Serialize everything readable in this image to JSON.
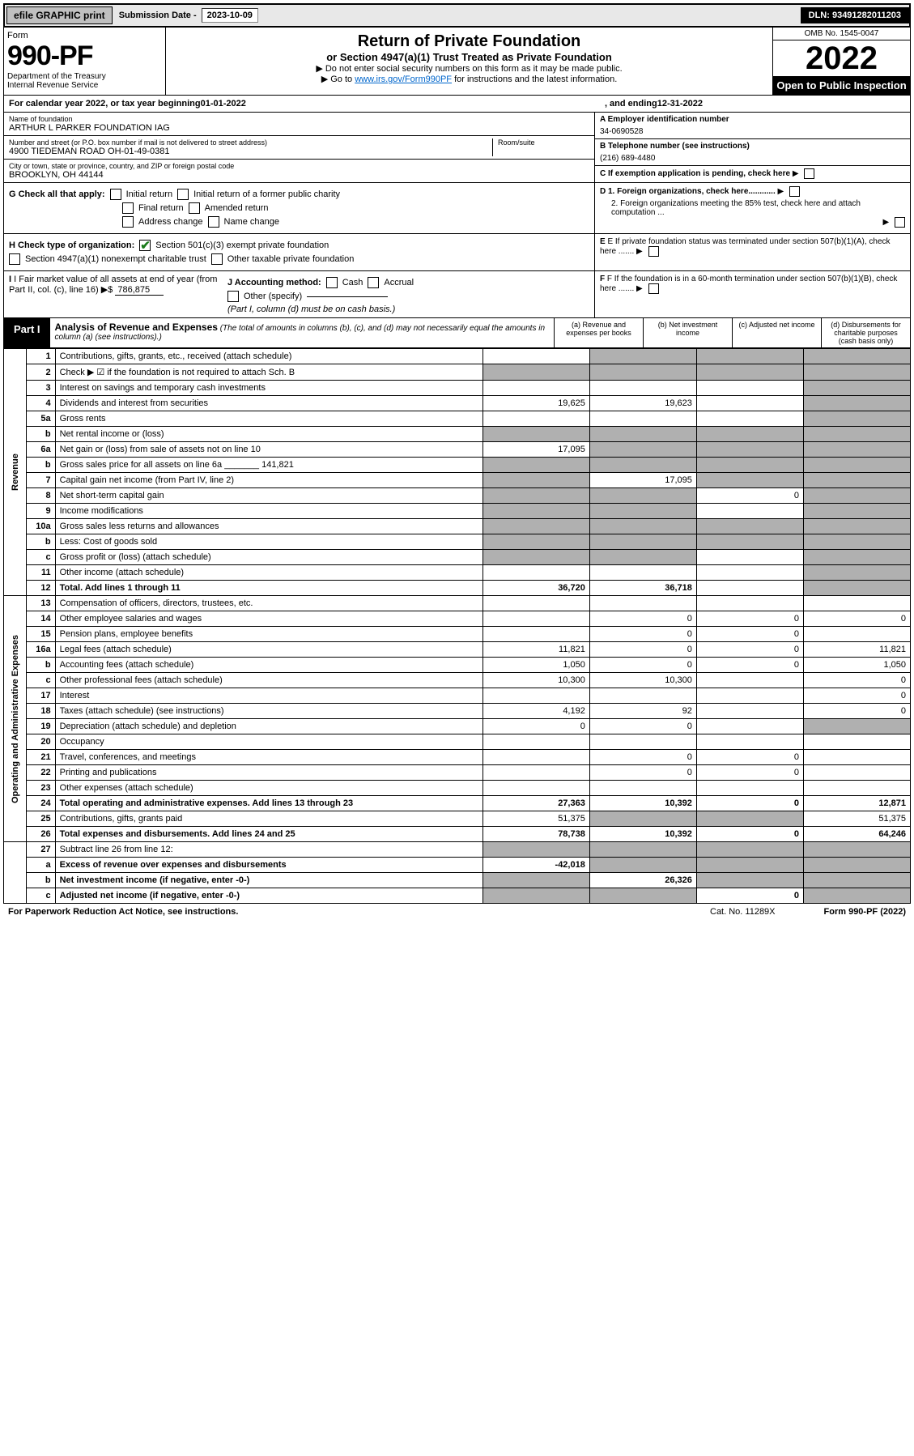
{
  "topbar": {
    "efile": "efile GRAPHIC print",
    "sub_label": "Submission Date - ",
    "sub_date": "2023-10-09",
    "dln_label": "DLN: ",
    "dln": "93491282011203"
  },
  "header": {
    "form_word": "Form",
    "form_no": "990-PF",
    "dept": "Department of the Treasury",
    "irs": "Internal Revenue Service",
    "title": "Return of Private Foundation",
    "subtitle": "or Section 4947(a)(1) Trust Treated as Private Foundation",
    "note1": "▶ Do not enter social security numbers on this form as it may be made public.",
    "note2_pre": "▶ Go to ",
    "note2_link": "www.irs.gov/Form990PF",
    "note2_post": " for instructions and the latest information.",
    "omb": "OMB No. 1545-0047",
    "year": "2022",
    "open": "Open to Public Inspection"
  },
  "cal": {
    "text_a": "For calendar year 2022, or tax year beginning ",
    "begin": "01-01-2022",
    "text_b": " , and ending ",
    "end": "12-31-2022"
  },
  "entity": {
    "name_lbl": "Name of foundation",
    "name": "ARTHUR L PARKER FOUNDATION IAG",
    "addr_lbl": "Number and street (or P.O. box number if mail is not delivered to street address)",
    "addr": "4900 TIEDEMAN ROAD OH-01-49-0381",
    "room_lbl": "Room/suite",
    "city_lbl": "City or town, state or province, country, and ZIP or foreign postal code",
    "city": "BROOKLYN, OH  44144",
    "A_lbl": "A Employer identification number",
    "A_val": "34-0690528",
    "B_lbl": "B Telephone number (see instructions)",
    "B_val": "(216) 689-4480",
    "C_lbl": "C If exemption application is pending, check here",
    "D1": "D 1. Foreign organizations, check here............",
    "D2": "2. Foreign organizations meeting the 85% test, check here and attach computation ...",
    "E": "E  If private foundation status was terminated under section 507(b)(1)(A), check here .......",
    "F": "F  If the foundation is in a 60-month termination under section 507(b)(1)(B), check here .......",
    "G": "G Check all that apply:",
    "G_opts": [
      "Initial return",
      "Initial return of a former public charity",
      "Final return",
      "Amended return",
      "Address change",
      "Name change"
    ],
    "H": "H Check type of organization:",
    "H1": "Section 501(c)(3) exempt private foundation",
    "H2": "Section 4947(a)(1) nonexempt charitable trust",
    "H3": "Other taxable private foundation",
    "I": "I Fair market value of all assets at end of year (from Part II, col. (c), line 16) ▶$",
    "I_val": "786,875",
    "J": "J Accounting method:",
    "J_cash": "Cash",
    "J_accr": "Accrual",
    "J_other": "Other (specify)",
    "J_note": "(Part I, column (d) must be on cash basis.)"
  },
  "part1": {
    "tab": "Part I",
    "title": "Analysis of Revenue and Expenses",
    "note": " (The total of amounts in columns (b), (c), and (d) may not necessarily equal the amounts in column (a) (see instructions).)",
    "col_a": "(a) Revenue and expenses per books",
    "col_b": "(b) Net investment income",
    "col_c": "(c) Adjusted net income",
    "col_d": "(d) Disbursements for charitable purposes (cash basis only)"
  },
  "sides": {
    "rev": "Revenue",
    "exp": "Operating and Administrative Expenses"
  },
  "rows": [
    {
      "n": "1",
      "d": "Contributions, gifts, grants, etc., received (attach schedule)",
      "a": "",
      "b": "shade",
      "c": "shade",
      "dd": "shade"
    },
    {
      "n": "2",
      "d": "Check ▶ ☑ if the foundation is not required to attach Sch. B",
      "a": "shade",
      "b": "shade",
      "c": "shade",
      "dd": "shade"
    },
    {
      "n": "3",
      "d": "Interest on savings and temporary cash investments",
      "a": "",
      "b": "",
      "c": "",
      "dd": "shade"
    },
    {
      "n": "4",
      "d": "Dividends and interest from securities",
      "a": "19,625",
      "b": "19,623",
      "c": "",
      "dd": "shade"
    },
    {
      "n": "5a",
      "d": "Gross rents",
      "a": "",
      "b": "",
      "c": "",
      "dd": "shade"
    },
    {
      "n": "b",
      "d": "Net rental income or (loss)",
      "a": "shade",
      "b": "shade",
      "c": "shade",
      "dd": "shade"
    },
    {
      "n": "6a",
      "d": "Net gain or (loss) from sale of assets not on line 10",
      "a": "17,095",
      "b": "shade",
      "c": "shade",
      "dd": "shade"
    },
    {
      "n": "b",
      "d": "Gross sales price for all assets on line 6a _______ 141,821",
      "a": "shade",
      "b": "shade",
      "c": "shade",
      "dd": "shade"
    },
    {
      "n": "7",
      "d": "Capital gain net income (from Part IV, line 2)",
      "a": "shade",
      "b": "17,095",
      "c": "shade",
      "dd": "shade"
    },
    {
      "n": "8",
      "d": "Net short-term capital gain",
      "a": "shade",
      "b": "shade",
      "c": "0",
      "dd": "shade"
    },
    {
      "n": "9",
      "d": "Income modifications",
      "a": "shade",
      "b": "shade",
      "c": "",
      "dd": "shade"
    },
    {
      "n": "10a",
      "d": "Gross sales less returns and allowances",
      "a": "shade",
      "b": "shade",
      "c": "shade",
      "dd": "shade"
    },
    {
      "n": "b",
      "d": "Less: Cost of goods sold",
      "a": "shade",
      "b": "shade",
      "c": "shade",
      "dd": "shade"
    },
    {
      "n": "c",
      "d": "Gross profit or (loss) (attach schedule)",
      "a": "shade",
      "b": "shade",
      "c": "",
      "dd": "shade"
    },
    {
      "n": "11",
      "d": "Other income (attach schedule)",
      "a": "",
      "b": "",
      "c": "",
      "dd": "shade"
    },
    {
      "n": "12",
      "d": "Total. Add lines 1 through 11",
      "a": "36,720",
      "b": "36,718",
      "c": "",
      "dd": "shade",
      "bold": true
    }
  ],
  "exp_rows": [
    {
      "n": "13",
      "d": "Compensation of officers, directors, trustees, etc.",
      "a": "",
      "b": "",
      "c": "",
      "dd": ""
    },
    {
      "n": "14",
      "d": "Other employee salaries and wages",
      "a": "",
      "b": "0",
      "c": "0",
      "dd": "0"
    },
    {
      "n": "15",
      "d": "Pension plans, employee benefits",
      "a": "",
      "b": "0",
      "c": "0",
      "dd": ""
    },
    {
      "n": "16a",
      "d": "Legal fees (attach schedule)",
      "a": "11,821",
      "b": "0",
      "c": "0",
      "dd": "11,821"
    },
    {
      "n": "b",
      "d": "Accounting fees (attach schedule)",
      "a": "1,050",
      "b": "0",
      "c": "0",
      "dd": "1,050"
    },
    {
      "n": "c",
      "d": "Other professional fees (attach schedule)",
      "a": "10,300",
      "b": "10,300",
      "c": "",
      "dd": "0"
    },
    {
      "n": "17",
      "d": "Interest",
      "a": "",
      "b": "",
      "c": "",
      "dd": "0"
    },
    {
      "n": "18",
      "d": "Taxes (attach schedule) (see instructions)",
      "a": "4,192",
      "b": "92",
      "c": "",
      "dd": "0"
    },
    {
      "n": "19",
      "d": "Depreciation (attach schedule) and depletion",
      "a": "0",
      "b": "0",
      "c": "",
      "dd": "shade"
    },
    {
      "n": "20",
      "d": "Occupancy",
      "a": "",
      "b": "",
      "c": "",
      "dd": ""
    },
    {
      "n": "21",
      "d": "Travel, conferences, and meetings",
      "a": "",
      "b": "0",
      "c": "0",
      "dd": ""
    },
    {
      "n": "22",
      "d": "Printing and publications",
      "a": "",
      "b": "0",
      "c": "0",
      "dd": ""
    },
    {
      "n": "23",
      "d": "Other expenses (attach schedule)",
      "a": "",
      "b": "",
      "c": "",
      "dd": ""
    },
    {
      "n": "24",
      "d": "Total operating and administrative expenses. Add lines 13 through 23",
      "a": "27,363",
      "b": "10,392",
      "c": "0",
      "dd": "12,871",
      "bold": true
    },
    {
      "n": "25",
      "d": "Contributions, gifts, grants paid",
      "a": "51,375",
      "b": "shade",
      "c": "shade",
      "dd": "51,375"
    },
    {
      "n": "26",
      "d": "Total expenses and disbursements. Add lines 24 and 25",
      "a": "78,738",
      "b": "10,392",
      "c": "0",
      "dd": "64,246",
      "bold": true
    }
  ],
  "bottom_rows": [
    {
      "n": "27",
      "d": "Subtract line 26 from line 12:",
      "a": "shade",
      "b": "shade",
      "c": "shade",
      "dd": "shade"
    },
    {
      "n": "a",
      "d": "Excess of revenue over expenses and disbursements",
      "a": "-42,018",
      "b": "shade",
      "c": "shade",
      "dd": "shade",
      "bold": true
    },
    {
      "n": "b",
      "d": "Net investment income (if negative, enter -0-)",
      "a": "shade",
      "b": "26,326",
      "c": "shade",
      "dd": "shade",
      "bold": true
    },
    {
      "n": "c",
      "d": "Adjusted net income (if negative, enter -0-)",
      "a": "shade",
      "b": "shade",
      "c": "0",
      "dd": "shade",
      "bold": true
    }
  ],
  "footer": {
    "left": "For Paperwork Reduction Act Notice, see instructions.",
    "mid": "Cat. No. 11289X",
    "right": "Form 990-PF (2022)"
  }
}
